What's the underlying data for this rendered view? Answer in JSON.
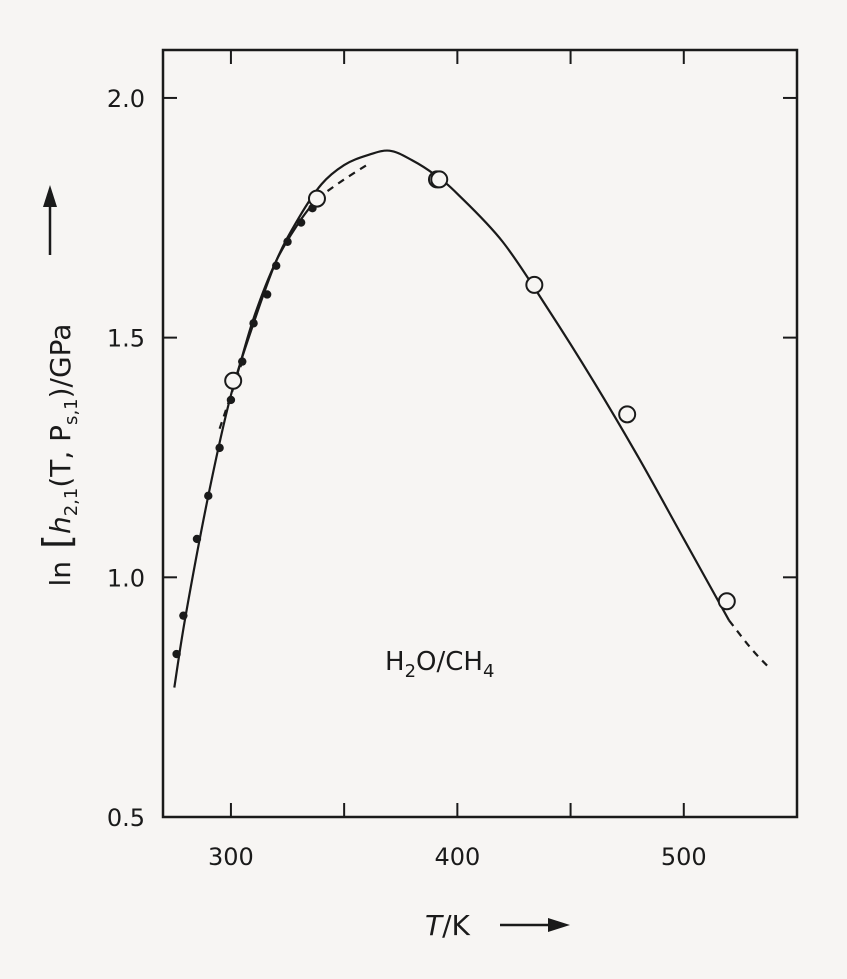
{
  "chart_data": {
    "type": "scatter",
    "xlabel_italic": "T",
    "xlabel_unit": "/K",
    "ylabel_prefix": "ln",
    "ylabel_symbol": "h",
    "ylabel_symbol_sub": "2,1",
    "ylabel_args": "(T, P",
    "ylabel_args_sub": "s,1",
    "ylabel_tail": ")/GPa",
    "annotation_main": "H",
    "annotation_sub1": "2",
    "annotation_mid": "O/CH",
    "annotation_sub2": "4",
    "xlim": [
      270,
      550
    ],
    "ylim": [
      0.5,
      2.1
    ],
    "x_ticks": [
      300,
      400,
      500
    ],
    "x_minor_ticks": [
      350,
      450
    ],
    "y_ticks": [
      0.5,
      1.0,
      1.5,
      2.0
    ],
    "x_tick_labels": [
      "300",
      "400",
      "500"
    ],
    "y_tick_labels": [
      "0.5",
      "1.0",
      "1.5",
      "2.0"
    ],
    "grid": false,
    "series": [
      {
        "marker": "filled-circle",
        "x": [
          276,
          279,
          285,
          290,
          295,
          300,
          305,
          310,
          316,
          320,
          325,
          331,
          336
        ],
        "y": [
          0.84,
          0.92,
          1.08,
          1.17,
          1.27,
          1.37,
          1.45,
          1.53,
          1.59,
          1.65,
          1.7,
          1.74,
          1.77
        ]
      },
      {
        "marker": "open-circle",
        "x": [
          301,
          338,
          391,
          392,
          434,
          475,
          519
        ],
        "y": [
          1.41,
          1.79,
          1.83,
          1.83,
          1.61,
          1.34,
          0.95
        ]
      },
      {
        "style": "solid-line",
        "x": [
          275,
          280,
          290,
          300,
          310,
          320,
          330,
          340,
          350,
          360,
          370,
          380,
          390,
          400,
          420,
          440,
          460,
          480,
          500,
          520
        ],
        "y": [
          0.77,
          0.92,
          1.17,
          1.38,
          1.53,
          1.66,
          1.75,
          1.82,
          1.86,
          1.88,
          1.89,
          1.87,
          1.84,
          1.8,
          1.7,
          1.56,
          1.41,
          1.25,
          1.08,
          0.91
        ]
      },
      {
        "style": "solid-line",
        "x": [
          302,
          310,
          320,
          330,
          338
        ],
        "y": [
          1.41,
          1.54,
          1.66,
          1.74,
          1.79
        ]
      },
      {
        "style": "dashed-line",
        "x": [
          295,
          300,
          305
        ],
        "y": [
          1.31,
          1.38,
          1.45
        ]
      },
      {
        "style": "dashed-line",
        "x": [
          338,
          350,
          360
        ],
        "y": [
          1.79,
          1.83,
          1.86
        ]
      },
      {
        "style": "dashed-line",
        "x": [
          520,
          530,
          538
        ],
        "y": [
          0.91,
          0.85,
          0.81
        ]
      }
    ]
  }
}
